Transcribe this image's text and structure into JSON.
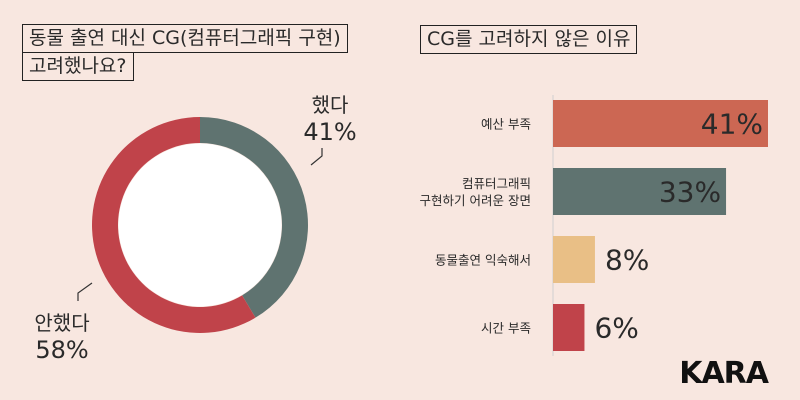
{
  "left_title": {
    "line1": "동물 출연 대신 CG(컴퓨터그래픽 구현)",
    "line2": "고려했나요?"
  },
  "right_title": "CG를 고려하지 않은 이유",
  "brand": "KARA",
  "colors": {
    "background": "#f8e7e0",
    "red": "#c0434a",
    "slate": "#5f7370",
    "coral": "#cc6753",
    "tan": "#e9bf86"
  },
  "chart_data": [
    {
      "type": "pie",
      "variant": "donut",
      "slices": [
        {
          "label": "했다",
          "value": 41,
          "value_label": "41%",
          "color": "#5f7370"
        },
        {
          "label": "안했다",
          "value": 58,
          "value_label": "58%",
          "color": "#c0434a"
        }
      ]
    },
    {
      "type": "bar",
      "orientation": "horizontal",
      "categories": [
        "예산 부족",
        "컴퓨터그래픽\n구현하기 어려운 장면",
        "동물출연 익숙해서",
        "시간 부족"
      ],
      "values": [
        41,
        33,
        8,
        6
      ],
      "value_labels": [
        "41%",
        "33%",
        "8%",
        "6%"
      ],
      "colors": [
        "#cc6753",
        "#5f7370",
        "#e9bf86",
        "#c0434a"
      ]
    }
  ]
}
